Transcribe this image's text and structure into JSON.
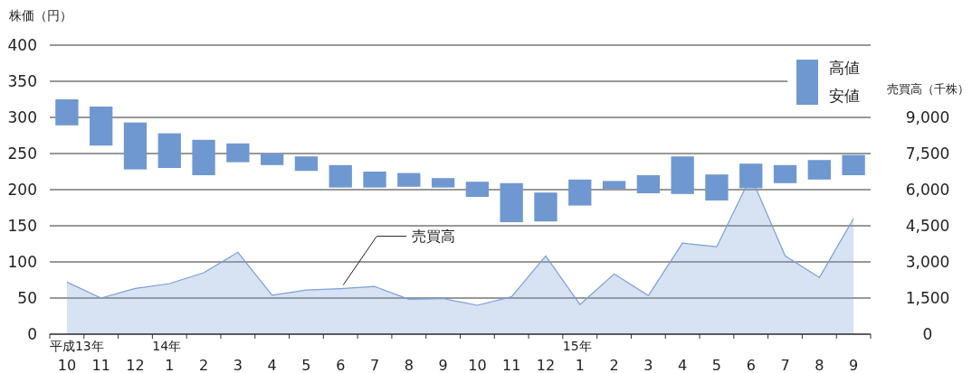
{
  "chart_data": {
    "type": "bar",
    "ylabel": "株価（円）",
    "y2label": "売買高（千株）",
    "categories": [
      "平成13年 10",
      "11",
      "12",
      "14年 1",
      "2",
      "3",
      "4",
      "5",
      "6",
      "7",
      "8",
      "9",
      "10",
      "11",
      "12",
      "15年 1",
      "2",
      "3",
      "4",
      "5",
      "6",
      "7",
      "8",
      "9"
    ],
    "ylim": [
      0,
      400
    ],
    "yticks": [
      0,
      50,
      100,
      150,
      200,
      250,
      300,
      350,
      400
    ],
    "y2lim": [
      0,
      12000
    ],
    "y2ticks": [
      0,
      {
        "value": 1500,
        "label": "1,500"
      },
      {
        "value": 3000,
        "label": "3,000"
      },
      {
        "value": 4500,
        "label": "4,500"
      },
      {
        "value": 6000,
        "label": "6,000"
      },
      {
        "value": 7500,
        "label": "7,500"
      },
      {
        "value": 9000,
        "label": "9,000"
      }
    ],
    "grid": "y",
    "annotations": [
      "高値",
      "安値"
    ],
    "series": [
      {
        "color": "#7098d0",
        "base": [
          289,
          261,
          228,
          230,
          220,
          238,
          234,
          226,
          203,
          203,
          204,
          203,
          190,
          155,
          156,
          178,
          201,
          195,
          194,
          185,
          202,
          209,
          214,
          220
        ],
        "values": [
          36,
          54,
          65,
          48,
          49,
          26,
          16,
          20,
          31,
          22,
          19,
          13,
          21,
          54,
          40,
          36,
          11,
          25,
          52,
          36,
          34,
          25,
          27,
          28
        ]
      },
      {
        "type": "area",
        "name": "売買高",
        "axis": "y2",
        "color": "#7b9fd6",
        "values": [
          2160,
          1500,
          1900,
          2100,
          2550,
          3400,
          1620,
          1830,
          1890,
          1980,
          1450,
          1480,
          1200,
          1550,
          3250,
          1230,
          2500,
          1600,
          3780,
          3630,
          6540,
          3250,
          2350,
          4800
        ]
      }
    ]
  }
}
